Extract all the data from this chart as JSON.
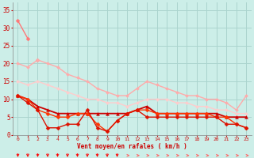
{
  "xlabel": "Vent moyen/en rafales ( km/h )",
  "background_color": "#cceee8",
  "grid_color": "#aad4ce",
  "x": [
    0,
    1,
    2,
    3,
    4,
    5,
    6,
    7,
    8,
    9,
    10,
    11,
    12,
    13,
    14,
    15,
    16,
    17,
    18,
    19,
    20,
    21,
    22,
    23
  ],
  "series": [
    {
      "y": [
        32,
        27,
        null,
        null,
        null,
        null,
        null,
        null,
        null,
        null,
        null,
        null,
        null,
        null,
        null,
        null,
        null,
        null,
        null,
        null,
        null,
        null,
        null,
        null
      ],
      "color": "#ff7777",
      "lw": 1.0,
      "marker": "D",
      "ms": 2.5
    },
    {
      "y": [
        null,
        null,
        21,
        null,
        null,
        null,
        null,
        null,
        null,
        null,
        null,
        null,
        null,
        null,
        null,
        null,
        null,
        null,
        null,
        null,
        null,
        null,
        null,
        null
      ],
      "color": "#ff9999",
      "lw": 1.0,
      "marker": "D",
      "ms": 2.5
    },
    {
      "y": [
        20,
        19,
        21,
        20,
        19,
        17,
        16,
        15,
        13,
        12,
        11,
        11,
        13,
        15,
        14,
        13,
        12,
        11,
        11,
        10,
        10,
        9,
        7,
        11
      ],
      "color": "#ffaaaa",
      "lw": 1.0,
      "marker": "D",
      "ms": 2.0
    },
    {
      "y": [
        15,
        14,
        15,
        14,
        13,
        12,
        11,
        10,
        10,
        9,
        9,
        8,
        9,
        10,
        10,
        10,
        9,
        9,
        8,
        8,
        7,
        7,
        6,
        6
      ],
      "color": "#ffcccc",
      "lw": 1.0,
      "marker": "D",
      "ms": 2.0
    },
    {
      "y": [
        11,
        10,
        8,
        7,
        6,
        6,
        6,
        6,
        6,
        6,
        6,
        6,
        7,
        8,
        6,
        6,
        6,
        6,
        6,
        6,
        6,
        5,
        5,
        5
      ],
      "color": "#cc0000",
      "lw": 1.3,
      "marker": "^",
      "ms": 2.8
    },
    {
      "y": [
        11,
        10,
        7,
        6,
        5,
        5,
        6,
        6,
        3,
        1,
        4,
        6,
        7,
        7,
        6,
        6,
        6,
        6,
        6,
        6,
        5,
        5,
        3,
        2
      ],
      "color": "#ff3300",
      "lw": 1.0,
      "marker": "D",
      "ms": 2.5
    },
    {
      "y": [
        11,
        9,
        7,
        2,
        2,
        3,
        3,
        7,
        2,
        1,
        4,
        6,
        7,
        5,
        5,
        5,
        5,
        5,
        5,
        5,
        5,
        3,
        3,
        2
      ],
      "color": "#dd1100",
      "lw": 1.0,
      "marker": "D",
      "ms": 2.5
    }
  ],
  "ylim": [
    0,
    37
  ],
  "yticks": [
    0,
    5,
    10,
    15,
    20,
    25,
    30,
    35
  ],
  "xticks": [
    0,
    1,
    2,
    3,
    4,
    5,
    6,
    7,
    8,
    9,
    10,
    11,
    12,
    13,
    14,
    15,
    16,
    17,
    18,
    19,
    20,
    21,
    22,
    23
  ],
  "tick_color": "#cc0000",
  "label_color": "#cc0000"
}
